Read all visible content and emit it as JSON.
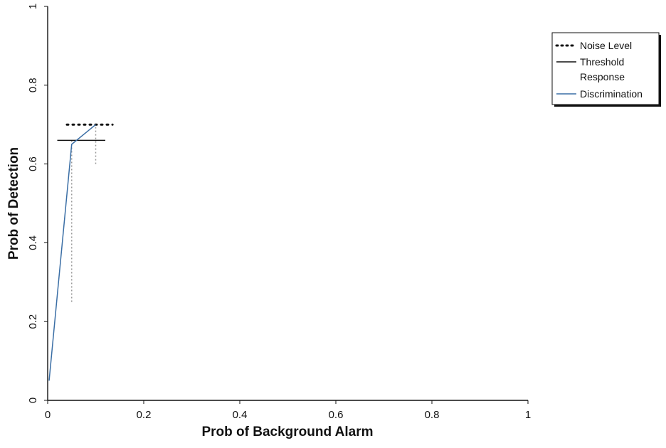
{
  "chart_data": {
    "type": "line",
    "title": "",
    "xlabel": "Prob of Background Alarm",
    "ylabel": "Prob of Detection",
    "xlim": [
      0,
      1
    ],
    "ylim": [
      0,
      1
    ],
    "xticks": [
      "0",
      "0.2",
      "0.4",
      "0.6",
      "0.8",
      "1"
    ],
    "yticks": [
      "0",
      "0.2",
      "0.4",
      "0.6",
      "0.8",
      "1"
    ],
    "grid": true,
    "legend_position": "right",
    "series": [
      {
        "name": "Noise Level",
        "style": "dotted",
        "color": "#111111",
        "x": [
          0.04,
          0.135
        ],
        "y": [
          0.7,
          0.7
        ]
      },
      {
        "name": "Threshold Response",
        "style": "solid",
        "color": "#111111",
        "x": [
          0.02,
          0.12
        ],
        "y": [
          0.66,
          0.66
        ]
      },
      {
        "name": "Discrimination",
        "style": "solid",
        "color": "#3a6ea5",
        "x": [
          0.003,
          0.05,
          0.1
        ],
        "y": [
          0.05,
          0.65,
          0.7
        ]
      }
    ],
    "extra_marks": [
      {
        "style": "dotted-gray",
        "color": "#999999",
        "x": [
          0.05,
          0.05
        ],
        "y": [
          0.25,
          0.66
        ]
      },
      {
        "style": "dotted-gray",
        "color": "#999999",
        "x": [
          0.1,
          0.1
        ],
        "y": [
          0.6,
          0.7
        ]
      }
    ]
  }
}
